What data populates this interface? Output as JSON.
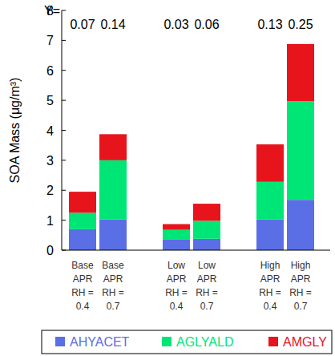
{
  "chart_data": {
    "type": "bar",
    "stacked": true,
    "y_label": "SOA Mass (μg/m³)",
    "categories": [
      "Base\nAPR\nRH =\n0.4",
      "Base\nAPR\nRH =\n0.7",
      "Low\nAPR\nRH =\n0.4",
      "Low\nAPR\nRH =\n0.7",
      "High\nAPR\nRH =\n0.4",
      "High\nAPR\nRH =\n0.7"
    ],
    "series": [
      {
        "name": "AHYACET",
        "color": "#5a6ee6",
        "values": [
          0.7,
          1.03,
          0.35,
          0.38,
          1.03,
          1.68
        ]
      },
      {
        "name": "AGLYALD",
        "color": "#00e676",
        "values": [
          0.55,
          1.97,
          0.33,
          0.6,
          1.25,
          3.29
        ]
      },
      {
        "name": "AMGLY",
        "color": "#e8141c",
        "values": [
          0.7,
          0.87,
          0.19,
          0.57,
          1.25,
          1.91
        ]
      }
    ],
    "annotations": {
      "label": "Y=",
      "values": [
        0.07,
        0.14,
        0.03,
        0.06,
        0.13,
        0.25
      ]
    },
    "ylim": [
      0,
      8
    ],
    "yticks": [
      0,
      1,
      2,
      3,
      4,
      5,
      6,
      7,
      8
    ],
    "grid": false,
    "legend": "bottom"
  }
}
